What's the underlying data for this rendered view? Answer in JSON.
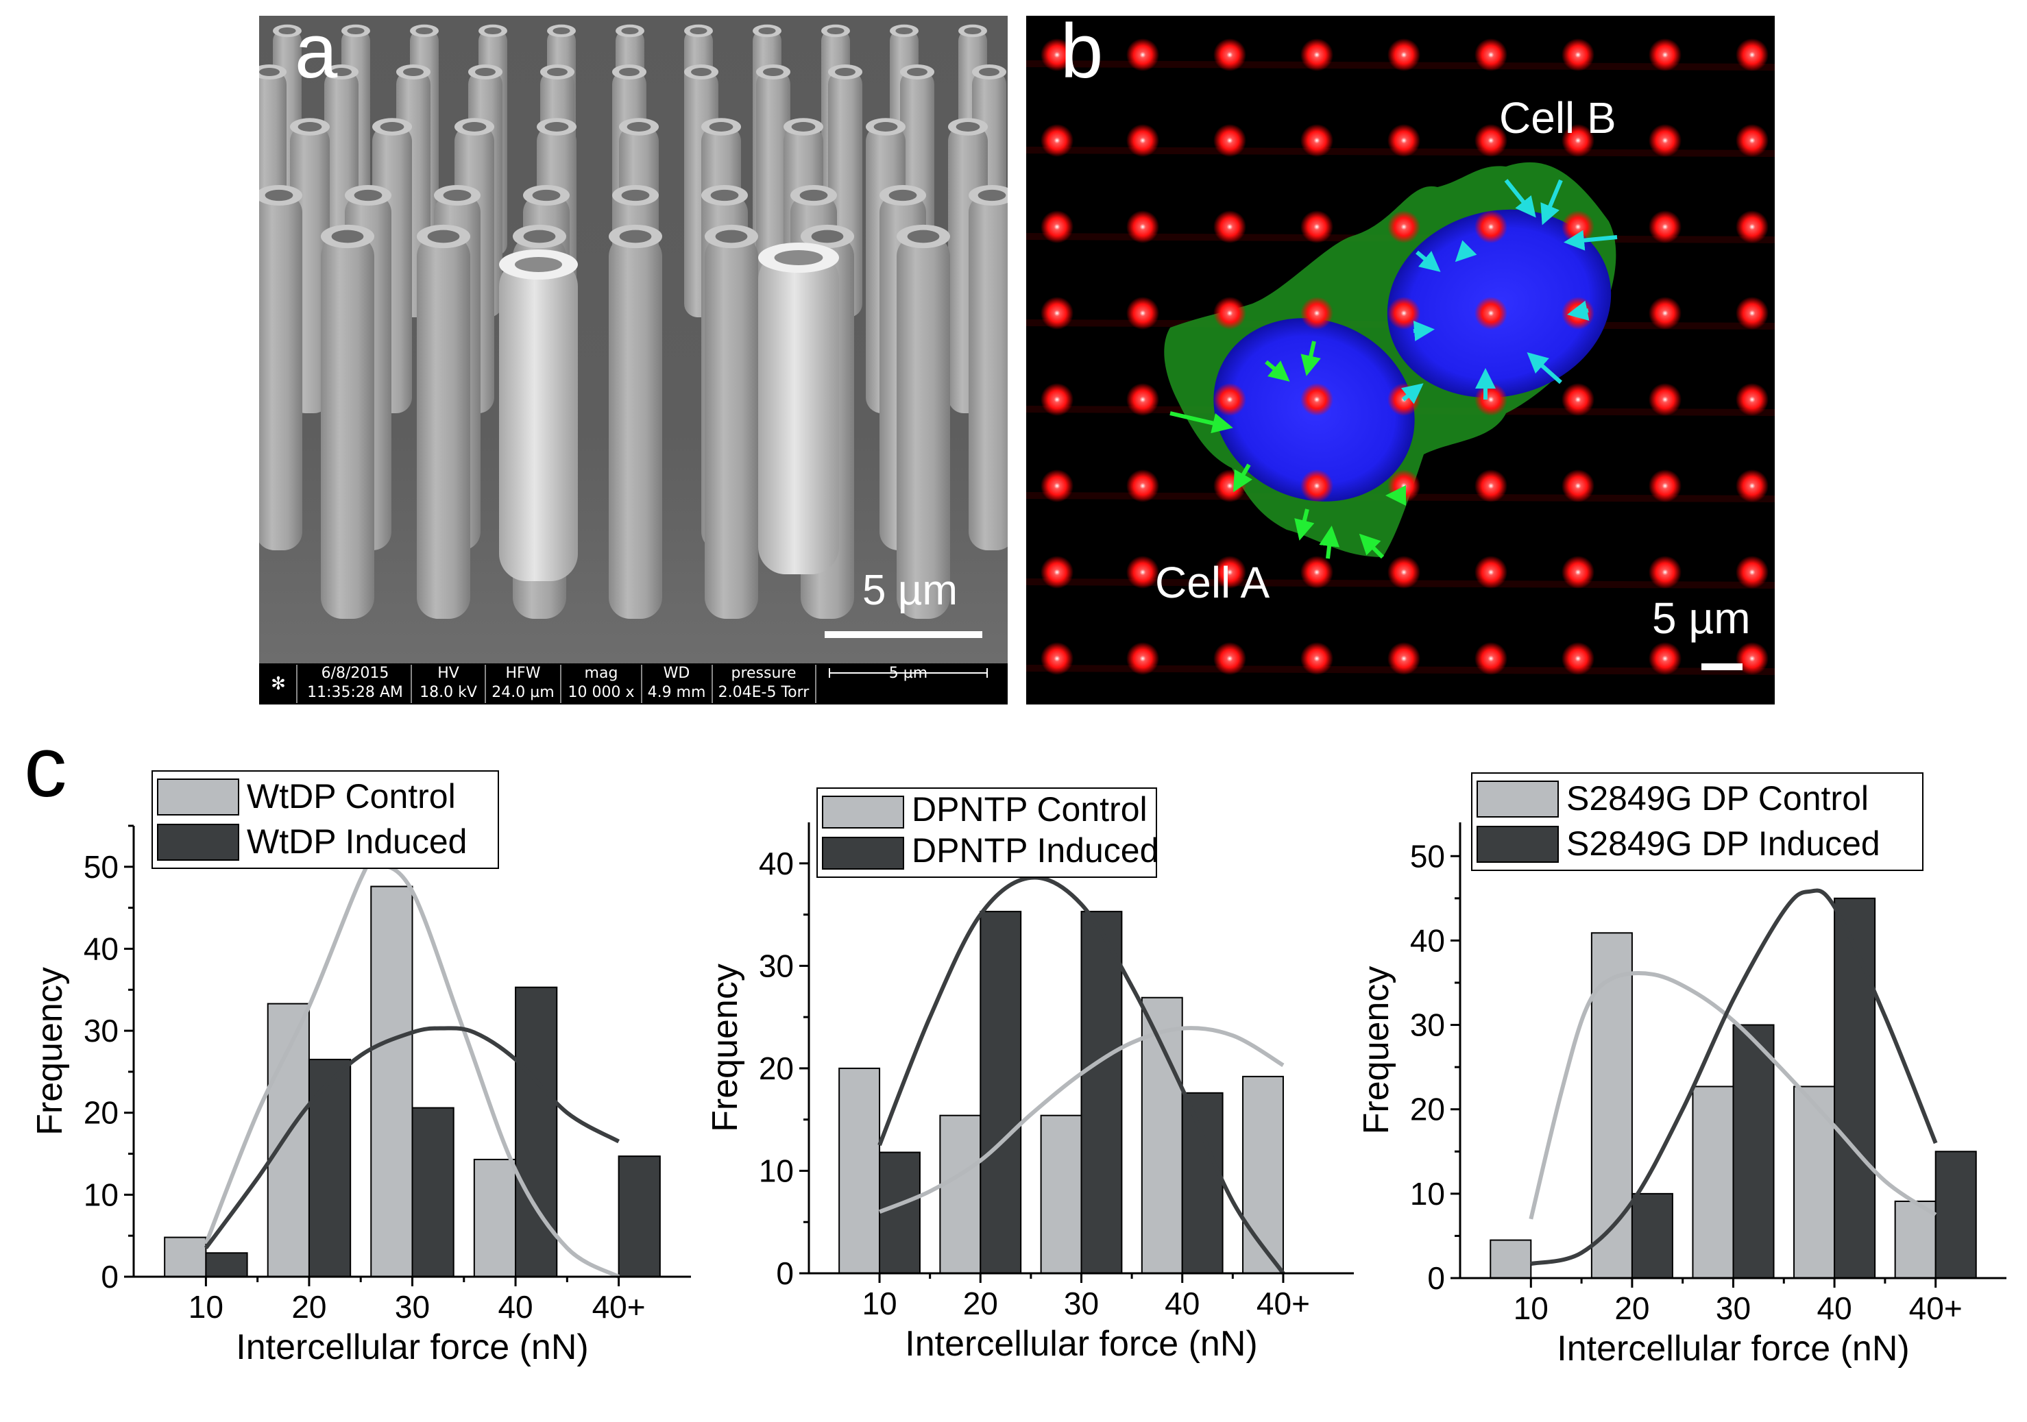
{
  "panel_a": {
    "letter": "a",
    "scale_bar": "5 µm",
    "info_bar": {
      "date": "6/8/2015",
      "time": "11:35:28 AM",
      "hv_label": "HV",
      "hv": "18.0 kV",
      "hfw_label": "HFW",
      "hfw": "24.0 µm",
      "mag_label": "mag",
      "mag": "10 000 x",
      "wd_label": "WD",
      "wd": "4.9 mm",
      "pressure_label": "pressure",
      "pressure": "2.04E-5 Torr",
      "bar_label": "5 µm"
    }
  },
  "panel_b": {
    "letter": "b",
    "cell_a": "Cell A",
    "cell_b": "Cell B",
    "scale_bar": "5 µm",
    "colors": {
      "posts": "#ff1a1a",
      "nucleus": "#2222ff",
      "cytoplasm": "#22aa22",
      "arrows_a": "#22ee33",
      "arrows_b": "#22dddd"
    }
  },
  "panel_c": {
    "letter": "c"
  },
  "chart_data": [
    {
      "type": "bar",
      "categories": [
        "10",
        "20",
        "30",
        "40",
        "40+"
      ],
      "xlabel": "Intercellular force (nN)",
      "ylabel": "Frequency",
      "ylim": [
        0,
        55
      ],
      "yticks": [
        0,
        10,
        20,
        30,
        40,
        50
      ],
      "series": [
        {
          "name": "WtDP Control",
          "color": "#b9bcbf",
          "values": [
            4.8,
            33.3,
            47.6,
            14.3,
            0
          ],
          "fit": [
            [
              0.0,
              4
            ],
            [
              0.5,
              20
            ],
            [
              1.0,
              33
            ],
            [
              1.5,
              48.5
            ],
            [
              1.65,
              50.3
            ],
            [
              2.0,
              47
            ],
            [
              2.5,
              30
            ],
            [
              3.0,
              13
            ],
            [
              3.5,
              3.5
            ],
            [
              4.0,
              0
            ]
          ]
        },
        {
          "name": "WtDP Induced",
          "color": "#3b3e40",
          "values": [
            2.9,
            26.5,
            20.6,
            35.3,
            14.7
          ],
          "fit": [
            [
              0.0,
              3.5
            ],
            [
              0.5,
              12
            ],
            [
              1.0,
              21
            ],
            [
              1.5,
              27
            ],
            [
              2.0,
              29.8
            ],
            [
              2.3,
              30.3
            ],
            [
              2.6,
              29.8
            ],
            [
              3.0,
              26.5
            ],
            [
              3.5,
              20
            ],
            [
              4.0,
              16.5
            ]
          ]
        }
      ]
    },
    {
      "type": "bar",
      "categories": [
        "10",
        "20",
        "30",
        "40",
        "40+"
      ],
      "xlabel": "Intercellular force (nN)",
      "ylabel": "Frequency",
      "ylim": [
        0,
        44
      ],
      "yticks": [
        0,
        10,
        20,
        30,
        40
      ],
      "series": [
        {
          "name": "DPNTP Control",
          "color": "#b9bcbf",
          "values": [
            20.0,
            15.4,
            15.4,
            26.9,
            19.2
          ],
          "fit": [
            [
              0.0,
              6
            ],
            [
              0.5,
              8
            ],
            [
              1.0,
              11
            ],
            [
              1.5,
              15.5
            ],
            [
              2.0,
              19.5
            ],
            [
              2.5,
              22.5
            ],
            [
              3.0,
              23.9
            ],
            [
              3.5,
              23.2
            ],
            [
              4.0,
              20.3
            ]
          ]
        },
        {
          "name": "DPNTP Induced",
          "color": "#3b3e40",
          "values": [
            11.8,
            35.3,
            35.3,
            17.6,
            0
          ],
          "fit": [
            [
              0.0,
              12.5
            ],
            [
              0.5,
              25
            ],
            [
              1.0,
              35
            ],
            [
              1.5,
              38.6
            ],
            [
              2.0,
              36
            ],
            [
              2.5,
              28
            ],
            [
              3.0,
              18
            ],
            [
              3.5,
              7
            ],
            [
              4.0,
              0
            ]
          ]
        }
      ]
    },
    {
      "type": "bar",
      "categories": [
        "10",
        "20",
        "30",
        "40",
        "40+"
      ],
      "xlabel": "Intercellular force (nN)",
      "ylabel": "Frequency",
      "ylim": [
        0,
        54
      ],
      "yticks": [
        0,
        10,
        20,
        30,
        40,
        50
      ],
      "series": [
        {
          "name": "S2849G DP Control",
          "color": "#b9bcbf",
          "values": [
            4.5,
            40.9,
            22.7,
            22.7,
            9.1
          ],
          "fit": [
            [
              0.0,
              7
            ],
            [
              0.3,
              22
            ],
            [
              0.55,
              32
            ],
            [
              0.8,
              35.5
            ],
            [
              1.2,
              36
            ],
            [
              1.6,
              34
            ],
            [
              2.0,
              30.5
            ],
            [
              2.5,
              24.5
            ],
            [
              3.0,
              18
            ],
            [
              3.5,
              11.5
            ],
            [
              4.0,
              7.5
            ]
          ]
        },
        {
          "name": "S2849G DP Induced",
          "color": "#3b3e40",
          "values": [
            0,
            10,
            30,
            45,
            15
          ],
          "fit": [
            [
              0.0,
              1.7
            ],
            [
              0.5,
              3
            ],
            [
              1.0,
              9
            ],
            [
              1.5,
              20
            ],
            [
              2.0,
              33
            ],
            [
              2.5,
              43.5
            ],
            [
              2.75,
              45.8
            ],
            [
              3.0,
              44
            ],
            [
              3.5,
              31
            ],
            [
              4.0,
              16
            ]
          ]
        }
      ]
    }
  ]
}
